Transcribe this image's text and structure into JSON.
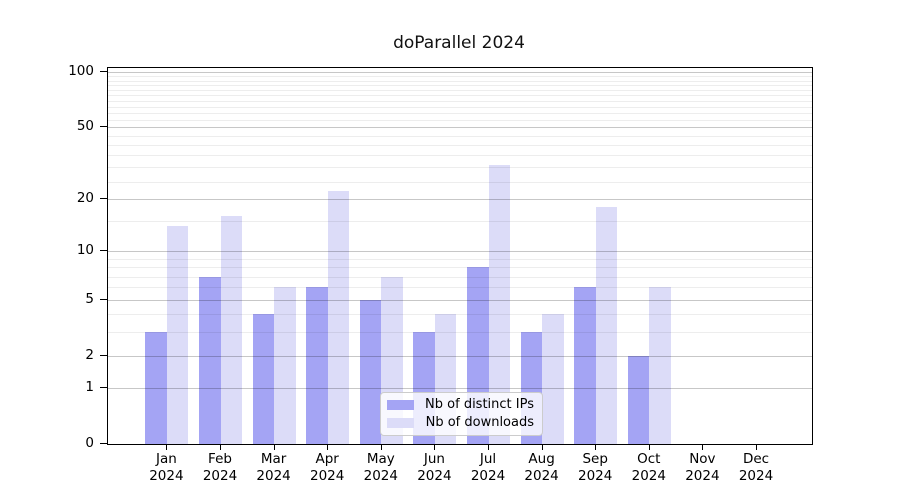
{
  "title": "doParallel 2024",
  "chart_data": {
    "type": "bar",
    "title": "doParallel 2024",
    "x_categories": [
      "Jan\n2024",
      "Feb\n2024",
      "Mar\n2024",
      "Apr\n2024",
      "May\n2024",
      "Jun\n2024",
      "Jul\n2024",
      "Aug\n2024",
      "Sep\n2024",
      "Oct\n2024",
      "Nov\n2024",
      "Dec\n2024"
    ],
    "series": [
      {
        "name": "Nb of distinct IPs",
        "color": "#a4a4f4",
        "values": [
          3,
          7,
          4,
          6,
          5,
          3,
          8,
          3,
          6,
          2,
          0,
          0
        ]
      },
      {
        "name": "Nb of downloads",
        "color": "#dcdcf8",
        "values": [
          14,
          16,
          6,
          22,
          7,
          4,
          31,
          4,
          18,
          6,
          0,
          0
        ]
      }
    ],
    "y_scale": "log1p",
    "y_tick_values": [
      0,
      1,
      2,
      5,
      10,
      20,
      50,
      100
    ],
    "y_minor_gridline_values": [
      3,
      4,
      6,
      7,
      8,
      9,
      15,
      25,
      30,
      35,
      40,
      45,
      55,
      60,
      65,
      70,
      75,
      80,
      85,
      90,
      95
    ],
    "ylim": [
      0,
      105
    ],
    "grid": true,
    "legend_position": "lower center",
    "xlabel": "",
    "ylabel": ""
  }
}
